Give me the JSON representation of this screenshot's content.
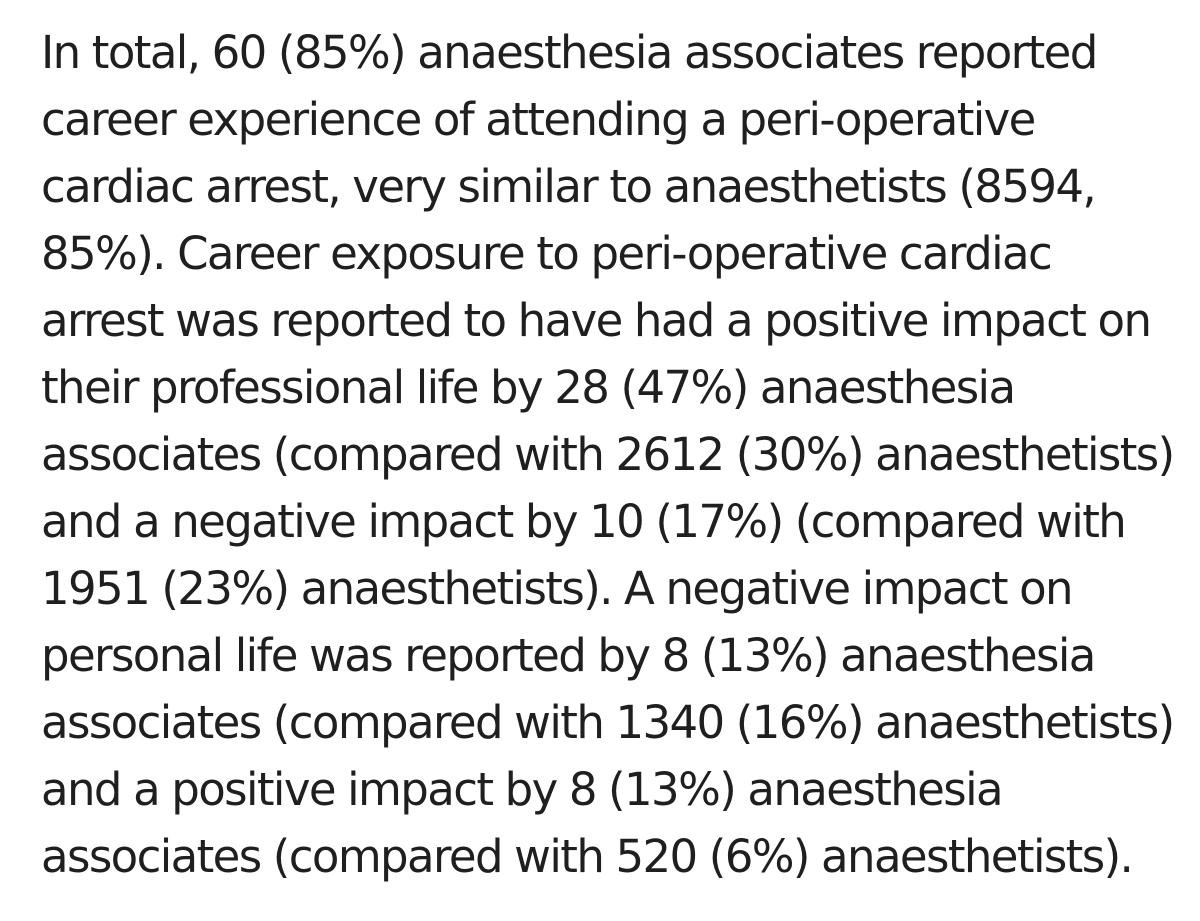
{
  "colors": {
    "text": "#1f1f1f",
    "background": "#ffffff"
  },
  "paragraph": {
    "lines": [
      "In total, 60 (85%) anaesthesia associates reported",
      "career experience of attending a peri-operative",
      "cardiac arrest, very similar to anaesthetists (8594,",
      "85%). Career exposure to peri-operative cardiac",
      "arrest was reported to have had a positive impact on",
      "their professional life by 28 (47%) anaesthesia",
      "associates (compared with 2612 (30%) anaesthetists)",
      "and a negative impact by 10 (17%) (compared with",
      "1951 (23%) anaesthetists). A negative impact on",
      "personal life was reported by 8 (13%) anaesthesia",
      "associates (compared with 1340 (16%) anaesthetists)",
      "and a positive impact by 8 (13%) anaesthesia",
      "associates (compared with 520 (6%) anaesthetists)."
    ],
    "full_text": "In total, 60 (85%) anaesthesia associates reported career experience of attending a peri-operative cardiac arrest, very similar to anaesthetists (8594, 85%). Career exposure to peri-operative cardiac arrest was reported to have had a positive impact on their professional life by 28 (47%) anaesthesia associates (compared with 2612 (30%) anaesthetists) and a negative impact by 10 (17%) (compared with 1951 (23%) anaesthetists). A negative impact on personal life was reported by 8 (13%) anaesthesia associates (compared with 1340 (16%) anaesthetists) and a positive impact by 8 (13%) anaesthesia associates (compared with 520 (6%) anaesthetists)."
  }
}
